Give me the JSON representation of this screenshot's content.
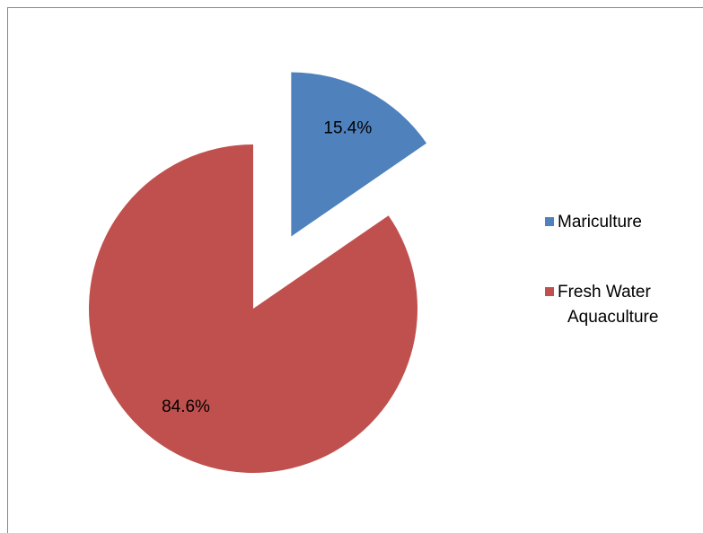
{
  "chart_data": {
    "type": "pie",
    "categories": [
      "Mariculture",
      "Fresh Water Aquaculture"
    ],
    "values": [
      15.4,
      84.6
    ],
    "value_labels": [
      "15.4%",
      "84.6%"
    ],
    "colors": [
      "#4f81bd",
      "#c0504d"
    ],
    "explode": [
      true,
      false
    ],
    "legend": "right"
  }
}
